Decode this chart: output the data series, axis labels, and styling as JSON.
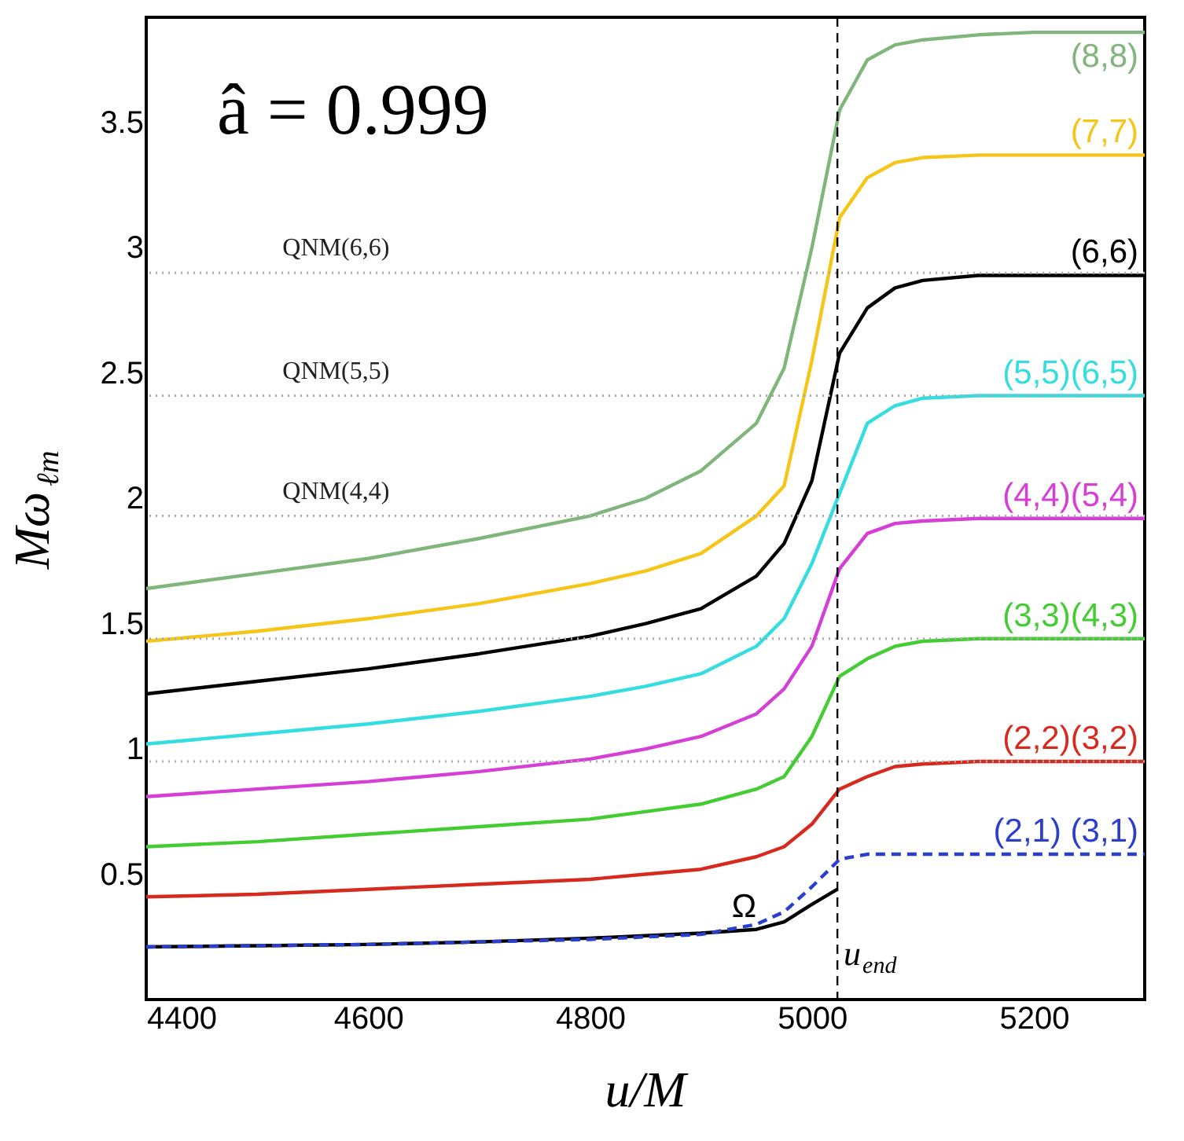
{
  "chart_data": {
    "type": "line",
    "xlabel": "u/M",
    "ylabel": "Mω$_{ℓm}$",
    "annotations": [
      "â = 0.999"
    ],
    "x": [
      4400,
      4500,
      4600,
      4700,
      4800,
      4850,
      4900,
      4950,
      4975,
      5000,
      5025,
      5050,
      5075,
      5100,
      5150,
      5200,
      5300
    ],
    "series": [
      {
        "name": "(8,8)",
        "color": "#80b67c",
        "values": [
          1.64,
          1.7,
          1.76,
          1.84,
          1.93,
          2.0,
          2.11,
          2.3,
          2.52,
          3.0,
          3.55,
          3.75,
          3.81,
          3.83,
          3.85,
          3.86,
          3.86
        ]
      },
      {
        "name": "(7,7)",
        "color": "#f5c518",
        "values": [
          1.43,
          1.47,
          1.52,
          1.58,
          1.66,
          1.71,
          1.78,
          1.93,
          2.05,
          2.55,
          3.12,
          3.28,
          3.34,
          3.36,
          3.37,
          3.37,
          3.37
        ]
      },
      {
        "name": "(6,6)",
        "color": "#000000",
        "values": [
          1.22,
          1.27,
          1.32,
          1.38,
          1.45,
          1.5,
          1.56,
          1.69,
          1.82,
          2.07,
          2.58,
          2.76,
          2.84,
          2.87,
          2.89,
          2.89,
          2.89
        ]
      },
      {
        "name": "(5,5)(6,5)",
        "color": "#33dde0",
        "values": [
          1.02,
          1.06,
          1.1,
          1.15,
          1.21,
          1.25,
          1.3,
          1.41,
          1.52,
          1.74,
          2.02,
          2.3,
          2.37,
          2.4,
          2.41,
          2.41,
          2.41
        ]
      },
      {
        "name": "(4,4)(5,4)",
        "color": "#d63fd6",
        "values": [
          0.81,
          0.84,
          0.87,
          0.91,
          0.96,
          1.0,
          1.05,
          1.14,
          1.24,
          1.41,
          1.72,
          1.86,
          1.9,
          1.91,
          1.92,
          1.92,
          1.92
        ]
      },
      {
        "name": "(3,3)(4,3)",
        "color": "#44cc33",
        "values": [
          0.61,
          0.63,
          0.66,
          0.69,
          0.72,
          0.75,
          0.78,
          0.84,
          0.89,
          1.05,
          1.29,
          1.36,
          1.41,
          1.43,
          1.44,
          1.44,
          1.44
        ]
      },
      {
        "name": "(2,2)(3,2)",
        "color": "#d62a1e",
        "values": [
          0.41,
          0.42,
          0.44,
          0.46,
          0.48,
          0.5,
          0.52,
          0.57,
          0.61,
          0.7,
          0.84,
          0.89,
          0.93,
          0.94,
          0.95,
          0.95,
          0.95
        ]
      },
      {
        "name": "(2,1) (3,1)",
        "color": "#2a3fcc",
        "line_style": "dashed",
        "values": [
          0.21,
          0.215,
          0.22,
          0.23,
          0.24,
          0.25,
          0.26,
          0.3,
          0.35,
          0.45,
          0.56,
          0.58,
          0.58,
          0.58,
          0.58,
          0.58,
          0.58
        ]
      },
      {
        "name": "Ω",
        "color": "#000000",
        "x": [
          4400,
          4500,
          4600,
          4700,
          4800,
          4850,
          4900,
          4950,
          4975,
          5000,
          5023
        ],
        "values": [
          0.21,
          0.215,
          0.22,
          0.23,
          0.245,
          0.255,
          0.265,
          0.28,
          0.31,
          0.38,
          0.44
        ]
      }
    ],
    "ref_lines": [
      {
        "axis": "y",
        "value": 2.9,
        "label": "QNM(6,6)",
        "color": "#aaaaaa",
        "line_style": "dotted"
      },
      {
        "axis": "y",
        "value": 2.41,
        "label": "QNM(5,5)",
        "color": "#aaaaaa",
        "line_style": "dotted"
      },
      {
        "axis": "y",
        "value": 1.93,
        "label": "QNM(4,4)",
        "color": "#aaaaaa",
        "line_style": "dotted"
      },
      {
        "axis": "y",
        "value": 1.44,
        "color": "#aaaaaa",
        "line_style": "dotted"
      },
      {
        "axis": "y",
        "value": 0.95,
        "color": "#aaaaaa",
        "line_style": "dotted"
      },
      {
        "axis": "x",
        "value": 5023,
        "label": "u$_{end}$",
        "color": "#000000",
        "line_style": "dashed"
      }
    ],
    "xlim": [
      4400,
      5300
    ],
    "ylim": [
      0,
      3.92
    ],
    "xticks": [
      4400,
      4600,
      4800,
      5000,
      5200
    ],
    "yticks": [
      0.5,
      1,
      1.5,
      2,
      2.5,
      3,
      3.5
    ],
    "grid": false,
    "marker": "none",
    "line_style": "solid"
  }
}
